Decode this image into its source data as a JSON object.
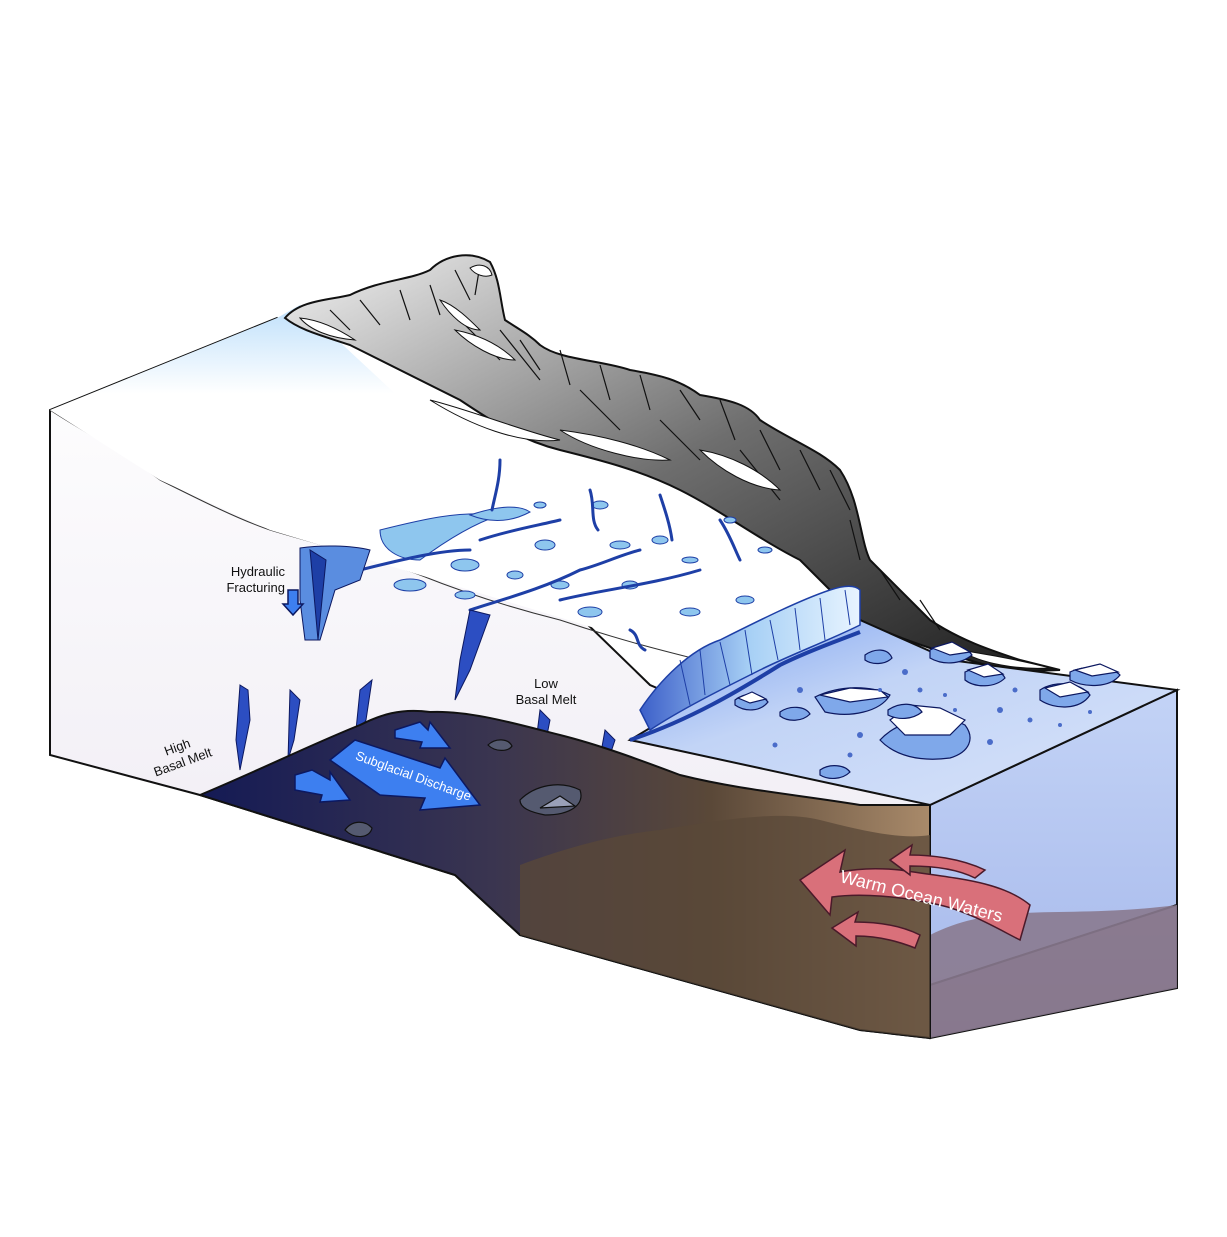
{
  "labels": {
    "hydraulic_1": "Hydraulic",
    "hydraulic_2": "Fracturing",
    "high_1": "High",
    "high_2": "Basal Melt",
    "low_1": "Low",
    "low_2": "Basal Melt",
    "subglacial": "Subglacial Discharge",
    "ocean": "Warm Ocean Waters"
  },
  "colors": {
    "ice_surface": "#f4f8fc",
    "meltwater": "#8ec6ee",
    "crevasse": "#1e3fa6",
    "bedrock_dark": "#1b1f4a",
    "bedrock_brown": "#5a4a3a",
    "ocean": "#b9cdf4",
    "ocean_arrow": "#d9707a",
    "discharge_arrow": "#3d7ff0"
  }
}
